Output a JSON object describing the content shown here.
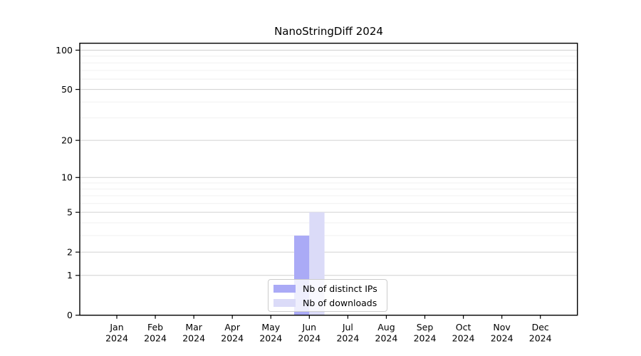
{
  "figure": {
    "title": "NanoStringDiff 2024"
  },
  "chart_data": {
    "type": "bar",
    "title": "NanoStringDiff 2024",
    "categories": [
      "Jan",
      "Feb",
      "Mar",
      "Apr",
      "May",
      "Jun",
      "Jul",
      "Aug",
      "Sep",
      "Oct",
      "Nov",
      "Dec"
    ],
    "category_year": "2024",
    "series": [
      {
        "name": "Nb of distinct IPs",
        "color": "#AAAAF6",
        "values": [
          0,
          0,
          0,
          0,
          0,
          3,
          0,
          0,
          0,
          0,
          0,
          0
        ]
      },
      {
        "name": "Nb of downloads",
        "color": "#DBDBF8",
        "values": [
          0,
          0,
          0,
          0,
          0,
          5,
          0,
          0,
          0,
          0,
          0,
          0
        ]
      }
    ],
    "xlabel": "",
    "ylabel": "",
    "yscale": "log1p",
    "ylim": [
      0,
      113
    ],
    "yticks": [
      0,
      1,
      2,
      5,
      10,
      20,
      50,
      100
    ],
    "minor_gridlines": [
      3,
      4,
      6,
      7,
      8,
      9,
      30,
      40,
      60,
      70,
      80,
      90
    ],
    "grid": "horizontal",
    "legend_position": "lower-center",
    "colors": {
      "major_grid": "#d0d0d0",
      "minor_grid": "#efefef",
      "axis": "#000000",
      "tick_label": "#000000",
      "legend_border": "#cccccc"
    }
  }
}
